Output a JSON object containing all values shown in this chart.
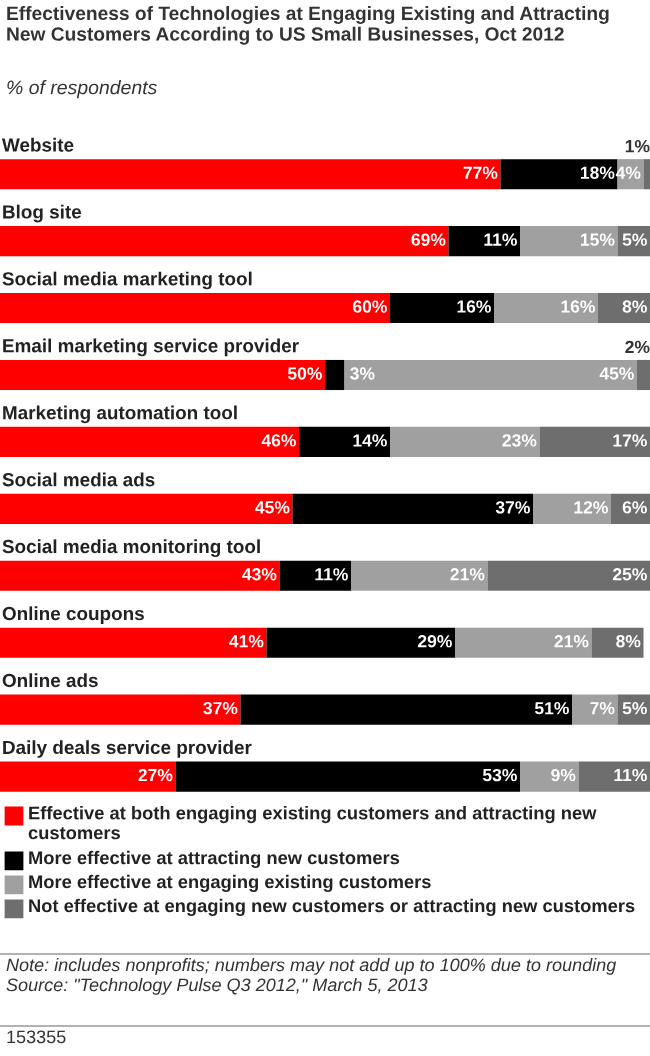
{
  "chart_data": {
    "type": "bar",
    "orientation": "horizontal",
    "stacked": true,
    "title": "Effectiveness of Technologies at Engaging Existing and Attracting New Customers According to US Small Businesses, Oct 2012",
    "subtitle": "% of respondents",
    "categories": [
      "Website",
      "Blog site",
      "Social media marketing tool",
      "Email marketing service provider",
      "Marketing automation tool",
      "Social media ads",
      "Social media monitoring tool",
      "Online coupons",
      "Online ads",
      "Daily deals service provider"
    ],
    "series": [
      {
        "name": "Effective at both engaging existing customers and attracting new customers",
        "color": "#ff0000",
        "values": [
          77,
          69,
          60,
          50,
          46,
          45,
          43,
          41,
          37,
          27
        ],
        "value_labels": [
          "77%",
          "69%",
          "60%",
          "50%",
          "46%",
          "45%",
          "43%",
          "41%",
          "37%",
          "27%"
        ]
      },
      {
        "name": "More effective at attracting new customers",
        "color": "#000000",
        "values": [
          18,
          11,
          16,
          3,
          14,
          37,
          11,
          29,
          51,
          53
        ],
        "value_labels": [
          "18%",
          "11%",
          "16%",
          "3%",
          "14%",
          "37%",
          "11%",
          "29%",
          "51%",
          "53%"
        ]
      },
      {
        "name": "More effective at engaging existing customers",
        "color": "#a0a0a0",
        "values": [
          4,
          15,
          16,
          45,
          23,
          12,
          21,
          21,
          7,
          9
        ],
        "value_labels": [
          "4%",
          "15%",
          "16%",
          "45%",
          "23%",
          "12%",
          "21%",
          "21%",
          "7%",
          "9%"
        ]
      },
      {
        "name": "Not effective at engaging new customers or attracting new customers",
        "color": "#6e6e6e",
        "values": [
          1,
          5,
          8,
          2,
          17,
          6,
          25,
          8,
          5,
          11
        ],
        "value_labels": [
          "1%",
          "5%",
          "8%",
          "2%",
          "17%",
          "6%",
          "25%",
          "8%",
          "5%",
          "11%"
        ]
      }
    ],
    "xlim": [
      0,
      100
    ],
    "legend": "bottom",
    "annotations": [
      "Note: includes nonprofits; numbers may not add up to 100% due to rounding",
      "Source: \"Technology Pulse Q3 2012,\" March 5, 2013",
      "153355"
    ]
  }
}
